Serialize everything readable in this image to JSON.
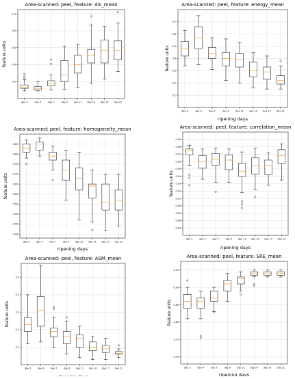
{
  "figure": {
    "xlabel": "ripening days",
    "ylabel": "feature units"
  },
  "chart_data": [
    {
      "type": "box",
      "title": "Area-scanned: peel, feature: dis_mean",
      "xlabel": "",
      "ylabel": "feature units",
      "categories": [
        "day 3",
        "day 4",
        "day 7",
        "day 9",
        "day 11",
        "day 14",
        "day 17",
        "day 21"
      ],
      "ylim": [
        0.0,
        1.05
      ],
      "yticks": [
        0.2,
        0.4,
        0.6,
        0.8,
        1.0
      ],
      "yticklabels": [
        "0.2",
        "0.4",
        "0.6",
        "0.8",
        "1.0"
      ],
      "grid": true,
      "boxes": [
        {
          "whislo": 0.09,
          "q1": 0.12,
          "med": 0.13,
          "q3": 0.16,
          "whishi": 0.22,
          "fliers": [
            0.24,
            0.26,
            0.29
          ]
        },
        {
          "whislo": 0.09,
          "q1": 0.1,
          "med": 0.12,
          "q3": 0.14,
          "whishi": 0.2,
          "fliers": []
        },
        {
          "whislo": 0.1,
          "q1": 0.15,
          "med": 0.18,
          "q3": 0.21,
          "whishi": 0.28,
          "fliers": [
            0.41,
            0.46
          ]
        },
        {
          "whislo": 0.11,
          "q1": 0.2,
          "med": 0.28,
          "q3": 0.45,
          "whishi": 0.62,
          "fliers": []
        },
        {
          "whislo": 0.13,
          "q1": 0.3,
          "med": 0.4,
          "q3": 0.51,
          "whishi": 0.64,
          "fliers": []
        },
        {
          "whislo": 0.18,
          "q1": 0.42,
          "med": 0.51,
          "q3": 0.58,
          "whishi": 0.87,
          "fliers": [
            0.97
          ]
        },
        {
          "whislo": 0.23,
          "q1": 0.42,
          "med": 0.57,
          "q3": 0.69,
          "whishi": 0.85,
          "fliers": []
        },
        {
          "whislo": 0.32,
          "q1": 0.46,
          "med": 0.57,
          "q3": 0.68,
          "whishi": 0.89,
          "fliers": [
            1.02
          ]
        }
      ]
    },
    {
      "type": "box",
      "title": "Area-scanned: peel, feature: energy_mean",
      "xlabel": "ripening days",
      "ylabel": "feature units",
      "categories": [
        "day 3",
        "day 4",
        "day 7",
        "day 9",
        "day 11",
        "day 14",
        "day 17",
        "day 21"
      ],
      "ylim": [
        0.0,
        0.8
      ],
      "yticks": [
        0.1,
        0.2,
        0.3,
        0.4,
        0.5,
        0.6,
        0.7
      ],
      "yticklabels": [
        "0.1",
        "0.2",
        "0.3",
        "0.4",
        "0.5",
        "0.6",
        "0.7"
      ],
      "grid": true,
      "boxes": [
        {
          "whislo": 0.34,
          "q1": 0.42,
          "med": 0.48,
          "q3": 0.54,
          "whishi": 0.63,
          "fliers": []
        },
        {
          "whislo": 0.35,
          "q1": 0.48,
          "med": 0.57,
          "q3": 0.66,
          "whishi": 0.75,
          "fliers": []
        },
        {
          "whislo": 0.31,
          "q1": 0.4,
          "med": 0.44,
          "q3": 0.49,
          "whishi": 0.57,
          "fliers": []
        },
        {
          "whislo": 0.22,
          "q1": 0.34,
          "med": 0.4,
          "q3": 0.45,
          "whishi": 0.56,
          "fliers": []
        },
        {
          "whislo": 0.2,
          "q1": 0.33,
          "med": 0.39,
          "q3": 0.44,
          "whishi": 0.53,
          "fliers": []
        },
        {
          "whislo": 0.16,
          "q1": 0.25,
          "med": 0.3,
          "q3": 0.37,
          "whishi": 0.45,
          "fliers": []
        },
        {
          "whislo": 0.15,
          "q1": 0.23,
          "med": 0.29,
          "q3": 0.33,
          "whishi": 0.42,
          "fliers": []
        },
        {
          "whislo": 0.15,
          "q1": 0.19,
          "med": 0.22,
          "q3": 0.26,
          "whishi": 0.34,
          "fliers": [
            0.38
          ]
        }
      ]
    },
    {
      "type": "box",
      "title": "Area-scanned: peel, feature: homogeneity_mean",
      "xlabel": "ripening days",
      "ylabel": "feature units",
      "categories": [
        "day 3",
        "day 4",
        "day 7",
        "day 9",
        "day 11",
        "day 14",
        "day 17",
        "day 21"
      ],
      "ylim": [
        0.38,
        0.9
      ],
      "yticks": [
        0.4,
        0.45,
        0.5,
        0.55,
        0.6,
        0.65,
        0.7,
        0.75,
        0.8,
        0.85
      ],
      "yticklabels": [
        "0.40",
        "0.45",
        "0.50",
        "0.55",
        "0.60",
        "0.65",
        "0.70",
        "0.75",
        "0.80",
        "0.85"
      ],
      "grid": true,
      "boxes": [
        {
          "whislo": 0.78,
          "q1": 0.81,
          "med": 0.83,
          "q3": 0.85,
          "whishi": 0.87,
          "fliers": [
            0.75
          ]
        },
        {
          "whislo": 0.79,
          "q1": 0.82,
          "med": 0.85,
          "q3": 0.86,
          "whishi": 0.88,
          "fliers": []
        },
        {
          "whislo": 0.72,
          "q1": 0.77,
          "med": 0.79,
          "q3": 0.81,
          "whishi": 0.84,
          "fliers": [
            0.67
          ]
        },
        {
          "whislo": 0.57,
          "q1": 0.67,
          "med": 0.72,
          "q3": 0.77,
          "whishi": 0.82,
          "fliers": []
        },
        {
          "whislo": 0.47,
          "q1": 0.62,
          "med": 0.68,
          "q3": 0.73,
          "whishi": 0.81,
          "fliers": []
        },
        {
          "whislo": 0.46,
          "q1": 0.58,
          "med": 0.64,
          "q3": 0.65,
          "whishi": 0.72,
          "fliers": [
            0.42
          ]
        },
        {
          "whislo": 0.42,
          "q1": 0.52,
          "med": 0.56,
          "q3": 0.65,
          "whishi": 0.7,
          "fliers": []
        },
        {
          "whislo": 0.44,
          "q1": 0.52,
          "med": 0.57,
          "q3": 0.62,
          "whishi": 0.7,
          "fliers": []
        }
      ]
    },
    {
      "type": "box",
      "title": "Area-scanned: peel, feature: correlation_mean",
      "xlabel": "ripening days",
      "ylabel": "feature units",
      "categories": [
        "day 3",
        "day 4",
        "day 7",
        "day 9",
        "day 11",
        "day 14",
        "day 17",
        "day 21"
      ],
      "ylim": [
        0.86,
        1.0
      ],
      "yticks": [
        0.87,
        0.88,
        0.89,
        0.9,
        0.91,
        0.92,
        0.93,
        0.94,
        0.95,
        0.96,
        0.97,
        0.98,
        0.99
      ],
      "yticklabels": [
        "0.87",
        "0.88",
        "0.89",
        "0.90",
        "0.91",
        "0.92",
        "0.93",
        "0.94",
        "0.95",
        "0.96",
        "0.97",
        "0.98",
        "0.99"
      ],
      "grid": true,
      "boxes": [
        {
          "whislo": 0.955,
          "q1": 0.969,
          "med": 0.975,
          "q3": 0.977,
          "whishi": 0.982,
          "fliers": [
            0.942,
            0.938,
            0.928
          ]
        },
        {
          "whislo": 0.936,
          "q1": 0.951,
          "med": 0.96,
          "q3": 0.968,
          "whishi": 0.977,
          "fliers": []
        },
        {
          "whislo": 0.932,
          "q1": 0.955,
          "med": 0.963,
          "q3": 0.971,
          "whishi": 0.978,
          "fliers": [
            0.919
          ]
        },
        {
          "whislo": 0.932,
          "q1": 0.949,
          "med": 0.962,
          "q3": 0.969,
          "whishi": 0.977,
          "fliers": []
        },
        {
          "whislo": 0.918,
          "q1": 0.94,
          "med": 0.947,
          "q3": 0.958,
          "whishi": 0.973,
          "fliers": [
            0.906,
            0.902,
            0.897
          ]
        },
        {
          "whislo": 0.922,
          "q1": 0.943,
          "med": 0.955,
          "q3": 0.965,
          "whishi": 0.978,
          "fliers": [
            0.912
          ]
        },
        {
          "whislo": 0.928,
          "q1": 0.942,
          "med": 0.955,
          "q3": 0.962,
          "whishi": 0.972,
          "fliers": []
        },
        {
          "whislo": 0.935,
          "q1": 0.957,
          "med": 0.968,
          "q3": 0.976,
          "whishi": 0.984,
          "fliers": []
        }
      ]
    },
    {
      "type": "box",
      "title": "Area-scanned: peel, feature: ASM_mean",
      "xlabel": "ripening days",
      "ylabel": "feature units",
      "categories": [
        "day 3",
        "day 4",
        "day 7",
        "day 9",
        "day 11",
        "day 14",
        "day 17",
        "day 21"
      ],
      "ylim": [
        0.0,
        0.58
      ],
      "yticks": [
        0.1,
        0.2,
        0.3,
        0.4,
        0.5
      ],
      "yticklabels": [
        "0.1",
        "0.2",
        "0.3",
        "0.4",
        "0.5"
      ],
      "grid": true,
      "boxes": [
        {
          "whislo": 0.12,
          "q1": 0.19,
          "med": 0.23,
          "q3": 0.27,
          "whishi": 0.4,
          "fliers": []
        },
        {
          "whislo": 0.13,
          "q1": 0.22,
          "med": 0.31,
          "q3": 0.39,
          "whishi": 0.57,
          "fliers": []
        },
        {
          "whislo": 0.1,
          "q1": 0.16,
          "med": 0.19,
          "q3": 0.21,
          "whishi": 0.27,
          "fliers": [
            0.32,
            0.33
          ]
        },
        {
          "whislo": 0.06,
          "q1": 0.12,
          "med": 0.16,
          "q3": 0.19,
          "whishi": 0.25,
          "fliers": [
            0.27
          ]
        },
        {
          "whislo": 0.04,
          "q1": 0.1,
          "med": 0.15,
          "q3": 0.17,
          "whishi": 0.22,
          "fliers": []
        },
        {
          "whislo": 0.03,
          "q1": 0.08,
          "med": 0.1,
          "q3": 0.13,
          "whishi": 0.16,
          "fliers": []
        },
        {
          "whislo": 0.03,
          "q1": 0.07,
          "med": 0.09,
          "q3": 0.11,
          "whishi": 0.15,
          "fliers": []
        },
        {
          "whislo": 0.04,
          "q1": 0.06,
          "med": 0.065,
          "q3": 0.075,
          "whishi": 0.09,
          "fliers": [
            0.11
          ]
        }
      ]
    },
    {
      "type": "box",
      "title": "Area-scanned: peel, feature: SRE_mean",
      "xlabel": "ripening days",
      "ylabel": "feature units",
      "categories": [
        "day 3",
        "day 4",
        "day 7",
        "day 9",
        "day 11",
        "day 14",
        "day 17",
        "day 21"
      ],
      "ylim": [
        0.68,
        0.975
      ],
      "yticks": [
        0.7,
        0.75,
        0.8,
        0.85,
        0.9,
        0.95
      ],
      "yticklabels": [
        "0.70",
        "0.75",
        "0.80",
        "0.85",
        "0.90",
        "0.95"
      ],
      "grid": true,
      "boxes": [
        {
          "whislo": 0.81,
          "q1": 0.84,
          "med": 0.86,
          "q3": 0.88,
          "whishi": 0.9,
          "fliers": [
            0.92
          ]
        },
        {
          "whislo": 0.81,
          "q1": 0.84,
          "med": 0.86,
          "q3": 0.87,
          "whishi": 0.89,
          "fliers": [
            0.76,
            0.755
          ]
        },
        {
          "whislo": 0.83,
          "q1": 0.86,
          "med": 0.87,
          "q3": 0.89,
          "whishi": 0.9,
          "fliers": [
            0.83
          ]
        },
        {
          "whislo": 0.86,
          "q1": 0.89,
          "med": 0.91,
          "q3": 0.92,
          "whishi": 0.94,
          "fliers": []
        },
        {
          "whislo": 0.89,
          "q1": 0.91,
          "med": 0.925,
          "q3": 0.93,
          "whishi": 0.945,
          "fliers": [
            0.88
          ]
        },
        {
          "whislo": 0.93,
          "q1": 0.935,
          "med": 0.94,
          "q3": 0.945,
          "whishi": 0.95,
          "fliers": [
            0.91,
            0.905
          ]
        },
        {
          "whislo": 0.93,
          "q1": 0.935,
          "med": 0.94,
          "q3": 0.945,
          "whishi": 0.95,
          "fliers": []
        },
        {
          "whislo": 0.93,
          "q1": 0.935,
          "med": 0.94,
          "q3": 0.945,
          "whishi": 0.95,
          "fliers": []
        }
      ]
    }
  ]
}
